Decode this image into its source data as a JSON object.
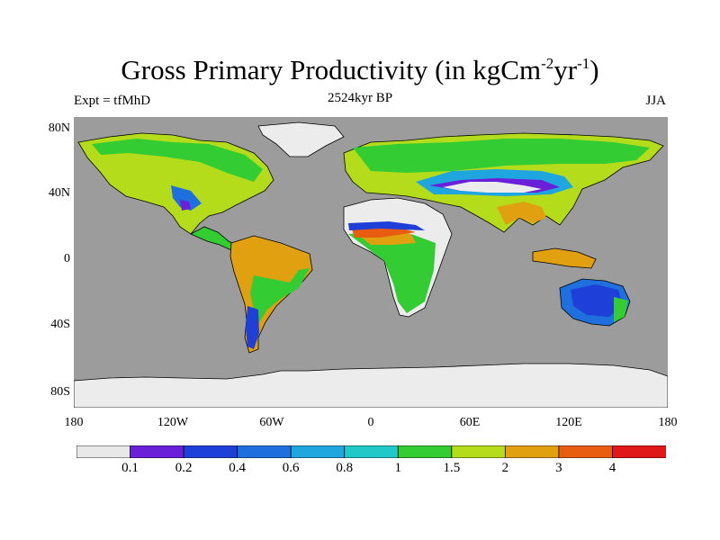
{
  "title_main": "Gross Primary Productivity (in kgCm",
  "title_exp1": "-2",
  "title_unit": "yr",
  "title_exp2": "-1",
  "title_close": ")",
  "subtitle": "2524kyr BP",
  "left_label": "Expt = tfMhD",
  "right_label": "JJA",
  "y_ticks": [
    "80N",
    "40N",
    "0",
    "40S",
    "80S"
  ],
  "x_ticks": [
    "180",
    "120W",
    "60W",
    "0",
    "60E",
    "120E",
    "180"
  ],
  "colorbar": {
    "labels": [
      "0.1",
      "0.2",
      "0.4",
      "0.6",
      "0.8",
      "1",
      "1.5",
      "2",
      "3",
      "4"
    ],
    "colors": [
      "#e8e8e8",
      "#6a1fd9",
      "#1f3fd9",
      "#1f6fdf",
      "#1fa6df",
      "#20c8c8",
      "#33cc33",
      "#b5dc1a",
      "#e0a010",
      "#e85d10",
      "#e01818"
    ]
  },
  "colors": {
    "ocean": "#9c9c9c",
    "ice": "#ececec"
  }
}
